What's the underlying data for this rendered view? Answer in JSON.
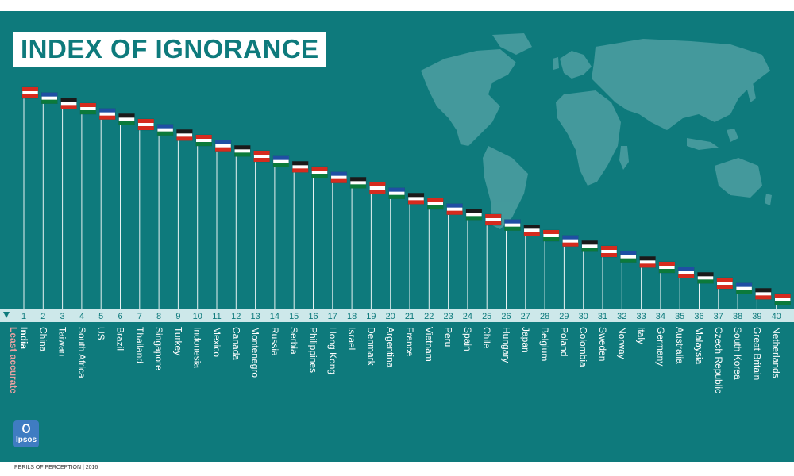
{
  "title": "INDEX OF IGNORANCE",
  "footer": "PERILS OF PERCEPTION | 2016",
  "logo_text": "Ipsos",
  "colors": {
    "background": "#0e7a7c",
    "axis_band": "#cde8ea",
    "label": "#ffffff",
    "accent_label": "#e8a1a1",
    "map": "#4a9da0"
  },
  "chart_data": {
    "type": "ranking",
    "title": "INDEX OF IGNORANCE",
    "axis_note": "Least accurate",
    "ranks": [
      1,
      2,
      3,
      4,
      5,
      6,
      7,
      8,
      9,
      10,
      11,
      12,
      13,
      14,
      15,
      16,
      17,
      18,
      19,
      20,
      21,
      22,
      23,
      24,
      25,
      26,
      27,
      28,
      29,
      30,
      31,
      32,
      33,
      34,
      35,
      36,
      37,
      38,
      39,
      40
    ],
    "countries": [
      "India",
      "China",
      "Taiwan",
      "South Africa",
      "US",
      "Brazil",
      "Thailand",
      "Singapore",
      "Turkey",
      "Indonesia",
      "Mexico",
      "Canada",
      "Montenegro",
      "Russia",
      "Serbia",
      "Philippines",
      "Hong Kong",
      "Israel",
      "Denmark",
      "Argentina",
      "France",
      "Vietnam",
      "Peru",
      "Spain",
      "Chile",
      "Hungary",
      "Japan",
      "Belgium",
      "Poland",
      "Colombia",
      "Sweden",
      "Norway",
      "Italy",
      "Germany",
      "Australia",
      "Malaysia",
      "Czech Republic",
      "South Korea",
      "Great Britain",
      "Netherlands"
    ]
  }
}
